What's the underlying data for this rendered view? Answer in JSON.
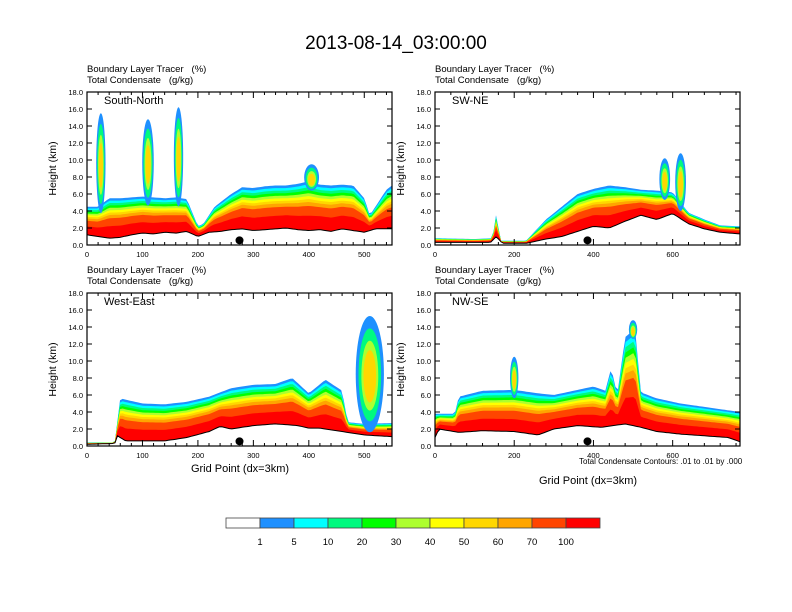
{
  "figure": {
    "title": "2013-08-14_03:00:00",
    "contour_note": "Total Condensate Contours: .01 to .01 by .000",
    "xlabel": "Grid Point (dx=3km)"
  },
  "colorbar": {
    "labels": [
      "1",
      "5",
      "10",
      "20",
      "30",
      "40",
      "50",
      "60",
      "70",
      "100"
    ],
    "colors": [
      "#ffffff",
      "#1e90ff",
      "#00ffff",
      "#00fa7f",
      "#00ff00",
      "#adff2f",
      "#ffff00",
      "#ffd700",
      "#ffa500",
      "#ff4500",
      "#ff0000"
    ]
  },
  "chart_data": [
    {
      "type": "heatmap",
      "panel": "South-North",
      "header": [
        "Boundary Layer Tracer   (%)",
        "Total Condensate   (g/kg)"
      ],
      "xlabel": "",
      "ylabel": "Height (km)",
      "xlim": [
        0,
        550
      ],
      "ylim": [
        0,
        18
      ],
      "xticks": [
        "0",
        "100",
        "200",
        "300",
        "400",
        "500"
      ],
      "xtick_values": [
        0,
        100,
        200,
        300,
        400,
        500
      ],
      "yticks": [
        "0.0",
        "2.0",
        "4.0",
        "6.0",
        "8.0",
        "10.0",
        "12.0",
        "14.0",
        "16.0",
        "18.0"
      ],
      "marker_x": 275,
      "contour_labels": [
        ".01",
        ".01",
        ".01"
      ],
      "terrain": [
        [
          0,
          1.2
        ],
        [
          20,
          1.0
        ],
        [
          40,
          0.8
        ],
        [
          60,
          0.9
        ],
        [
          80,
          1.2
        ],
        [
          100,
          1.4
        ],
        [
          120,
          1.3
        ],
        [
          140,
          1.5
        ],
        [
          160,
          1.4
        ],
        [
          180,
          1.6
        ],
        [
          200,
          1.0
        ],
        [
          220,
          1.5
        ],
        [
          240,
          1.6
        ],
        [
          260,
          1.8
        ],
        [
          280,
          1.9
        ],
        [
          300,
          1.7
        ],
        [
          320,
          1.8
        ],
        [
          340,
          1.9
        ],
        [
          360,
          2.0
        ],
        [
          380,
          1.8
        ],
        [
          400,
          1.7
        ],
        [
          420,
          1.8
        ],
        [
          440,
          1.6
        ],
        [
          460,
          1.9
        ],
        [
          480,
          1.7
        ],
        [
          500,
          1.5
        ],
        [
          520,
          1.9
        ],
        [
          550,
          1.9
        ]
      ],
      "bl_top": [
        [
          0,
          4.5
        ],
        [
          20,
          4.5
        ],
        [
          40,
          5.5
        ],
        [
          60,
          5.5
        ],
        [
          80,
          5.6
        ],
        [
          100,
          5.7
        ],
        [
          120,
          5.6
        ],
        [
          140,
          5.5
        ],
        [
          160,
          5.6
        ],
        [
          180,
          5.4
        ],
        [
          200,
          2.2
        ],
        [
          210,
          2.5
        ],
        [
          230,
          4.5
        ],
        [
          260,
          6.0
        ],
        [
          280,
          6.8
        ],
        [
          300,
          6.7
        ],
        [
          320,
          6.9
        ],
        [
          340,
          7.0
        ],
        [
          360,
          7.0
        ],
        [
          380,
          7.2
        ],
        [
          400,
          7.5
        ],
        [
          420,
          7.1
        ],
        [
          440,
          7.0
        ],
        [
          460,
          7.1
        ],
        [
          480,
          7.0
        ],
        [
          500,
          5.5
        ],
        [
          510,
          3.5
        ],
        [
          520,
          4.5
        ],
        [
          540,
          6.5
        ],
        [
          550,
          7.0
        ]
      ],
      "plumes": [
        [
          25,
          15.5,
          3
        ],
        [
          110,
          14.8,
          5
        ],
        [
          165,
          16.2,
          3
        ],
        [
          405,
          9.5,
          8
        ]
      ]
    },
    {
      "type": "heatmap",
      "panel": "SW-NE",
      "header": [
        "Boundary Layer Tracer   (%)",
        "Total Condensate   (g/kg)"
      ],
      "xlabel": "",
      "ylabel": "Height (km)",
      "xlim": [
        0,
        770
      ],
      "ylim": [
        0,
        18
      ],
      "xticks": [
        "0",
        "200",
        "400",
        "600"
      ],
      "xtick_values": [
        0,
        200,
        400,
        600
      ],
      "yticks": [
        "0.0",
        "2.0",
        "4.0",
        "6.0",
        "8.0",
        "10.0",
        "12.0",
        "14.0",
        "16.0",
        "18.0"
      ],
      "marker_x": 385,
      "contour_labels": [
        ".01"
      ],
      "terrain": [
        [
          0,
          0.3
        ],
        [
          100,
          0.3
        ],
        [
          140,
          0.3
        ],
        [
          155,
          1.0
        ],
        [
          170,
          0.2
        ],
        [
          230,
          0.2
        ],
        [
          280,
          0.7
        ],
        [
          320,
          1.0
        ],
        [
          360,
          1.6
        ],
        [
          400,
          2.2
        ],
        [
          440,
          2.0
        ],
        [
          480,
          2.8
        ],
        [
          520,
          3.5
        ],
        [
          560,
          3.0
        ],
        [
          600,
          3.7
        ],
        [
          640,
          2.5
        ],
        [
          680,
          1.9
        ],
        [
          720,
          1.5
        ],
        [
          770,
          1.3
        ]
      ],
      "bl_top": [
        [
          0,
          0.8
        ],
        [
          100,
          0.7
        ],
        [
          145,
          0.8
        ],
        [
          155,
          3.8
        ],
        [
          165,
          0.5
        ],
        [
          230,
          0.5
        ],
        [
          280,
          3.0
        ],
        [
          320,
          4.5
        ],
        [
          360,
          6.0
        ],
        [
          400,
          6.6
        ],
        [
          440,
          7.0
        ],
        [
          480,
          6.8
        ],
        [
          520,
          6.5
        ],
        [
          560,
          6.4
        ],
        [
          600,
          6.2
        ],
        [
          640,
          3.8
        ],
        [
          680,
          3.0
        ],
        [
          720,
          2.3
        ],
        [
          770,
          2.2
        ]
      ],
      "plumes": [
        [
          580,
          10.2,
          6
        ],
        [
          620,
          10.8,
          6
        ]
      ]
    },
    {
      "type": "heatmap",
      "panel": "West-East",
      "header": [
        "Boundary Layer Tracer   (%)",
        "Total Condensate   (g/kg)"
      ],
      "xlabel": "Grid Point (dx=3km)",
      "ylabel": "Height (km)",
      "xlim": [
        0,
        550
      ],
      "ylim": [
        0,
        18
      ],
      "xticks": [
        "0",
        "100",
        "200",
        "300",
        "400",
        "500"
      ],
      "xtick_values": [
        0,
        100,
        200,
        300,
        400,
        500
      ],
      "yticks": [
        "0.0",
        "2.0",
        "4.0",
        "6.0",
        "8.0",
        "10.0",
        "12.0",
        "14.0",
        "16.0",
        "18.0"
      ],
      "marker_x": 275,
      "contour_labels": [],
      "terrain": [
        [
          0,
          0.2
        ],
        [
          50,
          0.3
        ],
        [
          55,
          1.2
        ],
        [
          70,
          0.6
        ],
        [
          100,
          0.6
        ],
        [
          140,
          0.6
        ],
        [
          180,
          1.0
        ],
        [
          220,
          1.7
        ],
        [
          240,
          2.3
        ],
        [
          260,
          2.0
        ],
        [
          300,
          2.4
        ],
        [
          340,
          2.6
        ],
        [
          380,
          2.4
        ],
        [
          400,
          2.1
        ],
        [
          420,
          2.1
        ],
        [
          460,
          1.7
        ],
        [
          500,
          1.3
        ],
        [
          550,
          1.1
        ]
      ],
      "bl_top": [
        [
          0,
          0.4
        ],
        [
          50,
          0.4
        ],
        [
          60,
          5.6
        ],
        [
          100,
          5.0
        ],
        [
          140,
          4.9
        ],
        [
          180,
          5.2
        ],
        [
          220,
          5.8
        ],
        [
          260,
          6.8
        ],
        [
          300,
          7.2
        ],
        [
          340,
          7.3
        ],
        [
          370,
          8.0
        ],
        [
          400,
          6.2
        ],
        [
          430,
          7.8
        ],
        [
          460,
          6.5
        ],
        [
          470,
          2.8
        ],
        [
          500,
          2.6
        ],
        [
          550,
          2.7
        ]
      ],
      "plumes": [
        [
          510,
          15.3,
          20
        ]
      ]
    },
    {
      "type": "heatmap",
      "panel": "NW-SE",
      "header": [
        "Boundary Layer Tracer   (%)",
        "Total Condensate   (g/kg)"
      ],
      "xlabel": "Grid Point (dx=3km)",
      "ylabel": "Height (km)",
      "xlim": [
        0,
        770
      ],
      "ylim": [
        0,
        18
      ],
      "xticks": [
        "0",
        "200",
        "400",
        "600"
      ],
      "xtick_values": [
        0,
        200,
        400,
        600
      ],
      "yticks": [
        "0.0",
        "2.0",
        "4.0",
        "6.0",
        "8.0",
        "10.0",
        "12.0",
        "14.0",
        "16.0",
        "18.0"
      ],
      "marker_x": 385,
      "contour_labels": [
        ".01"
      ],
      "terrain": [
        [
          0,
          1.0
        ],
        [
          10,
          2.0
        ],
        [
          60,
          1.6
        ],
        [
          120,
          1.8
        ],
        [
          200,
          1.7
        ],
        [
          260,
          1.3
        ],
        [
          300,
          2.0
        ],
        [
          360,
          2.4
        ],
        [
          420,
          2.2
        ],
        [
          480,
          2.6
        ],
        [
          520,
          2.2
        ],
        [
          560,
          1.7
        ],
        [
          620,
          1.4
        ],
        [
          680,
          1.2
        ],
        [
          740,
          1.0
        ],
        [
          770,
          0.5
        ]
      ],
      "bl_top": [
        [
          0,
          3.8
        ],
        [
          50,
          3.8
        ],
        [
          60,
          5.8
        ],
        [
          120,
          6.5
        ],
        [
          200,
          6.6
        ],
        [
          260,
          6.2
        ],
        [
          300,
          6.0
        ],
        [
          360,
          6.6
        ],
        [
          400,
          7.0
        ],
        [
          430,
          6.5
        ],
        [
          445,
          9.2
        ],
        [
          460,
          6.0
        ],
        [
          480,
          12.8
        ],
        [
          505,
          13.8
        ],
        [
          520,
          6.3
        ],
        [
          560,
          5.6
        ],
        [
          620,
          5.0
        ],
        [
          680,
          4.6
        ],
        [
          740,
          4.2
        ],
        [
          770,
          4.0
        ]
      ],
      "plumes": [
        [
          200,
          10.5,
          3
        ],
        [
          500,
          14.8,
          3
        ]
      ]
    }
  ]
}
